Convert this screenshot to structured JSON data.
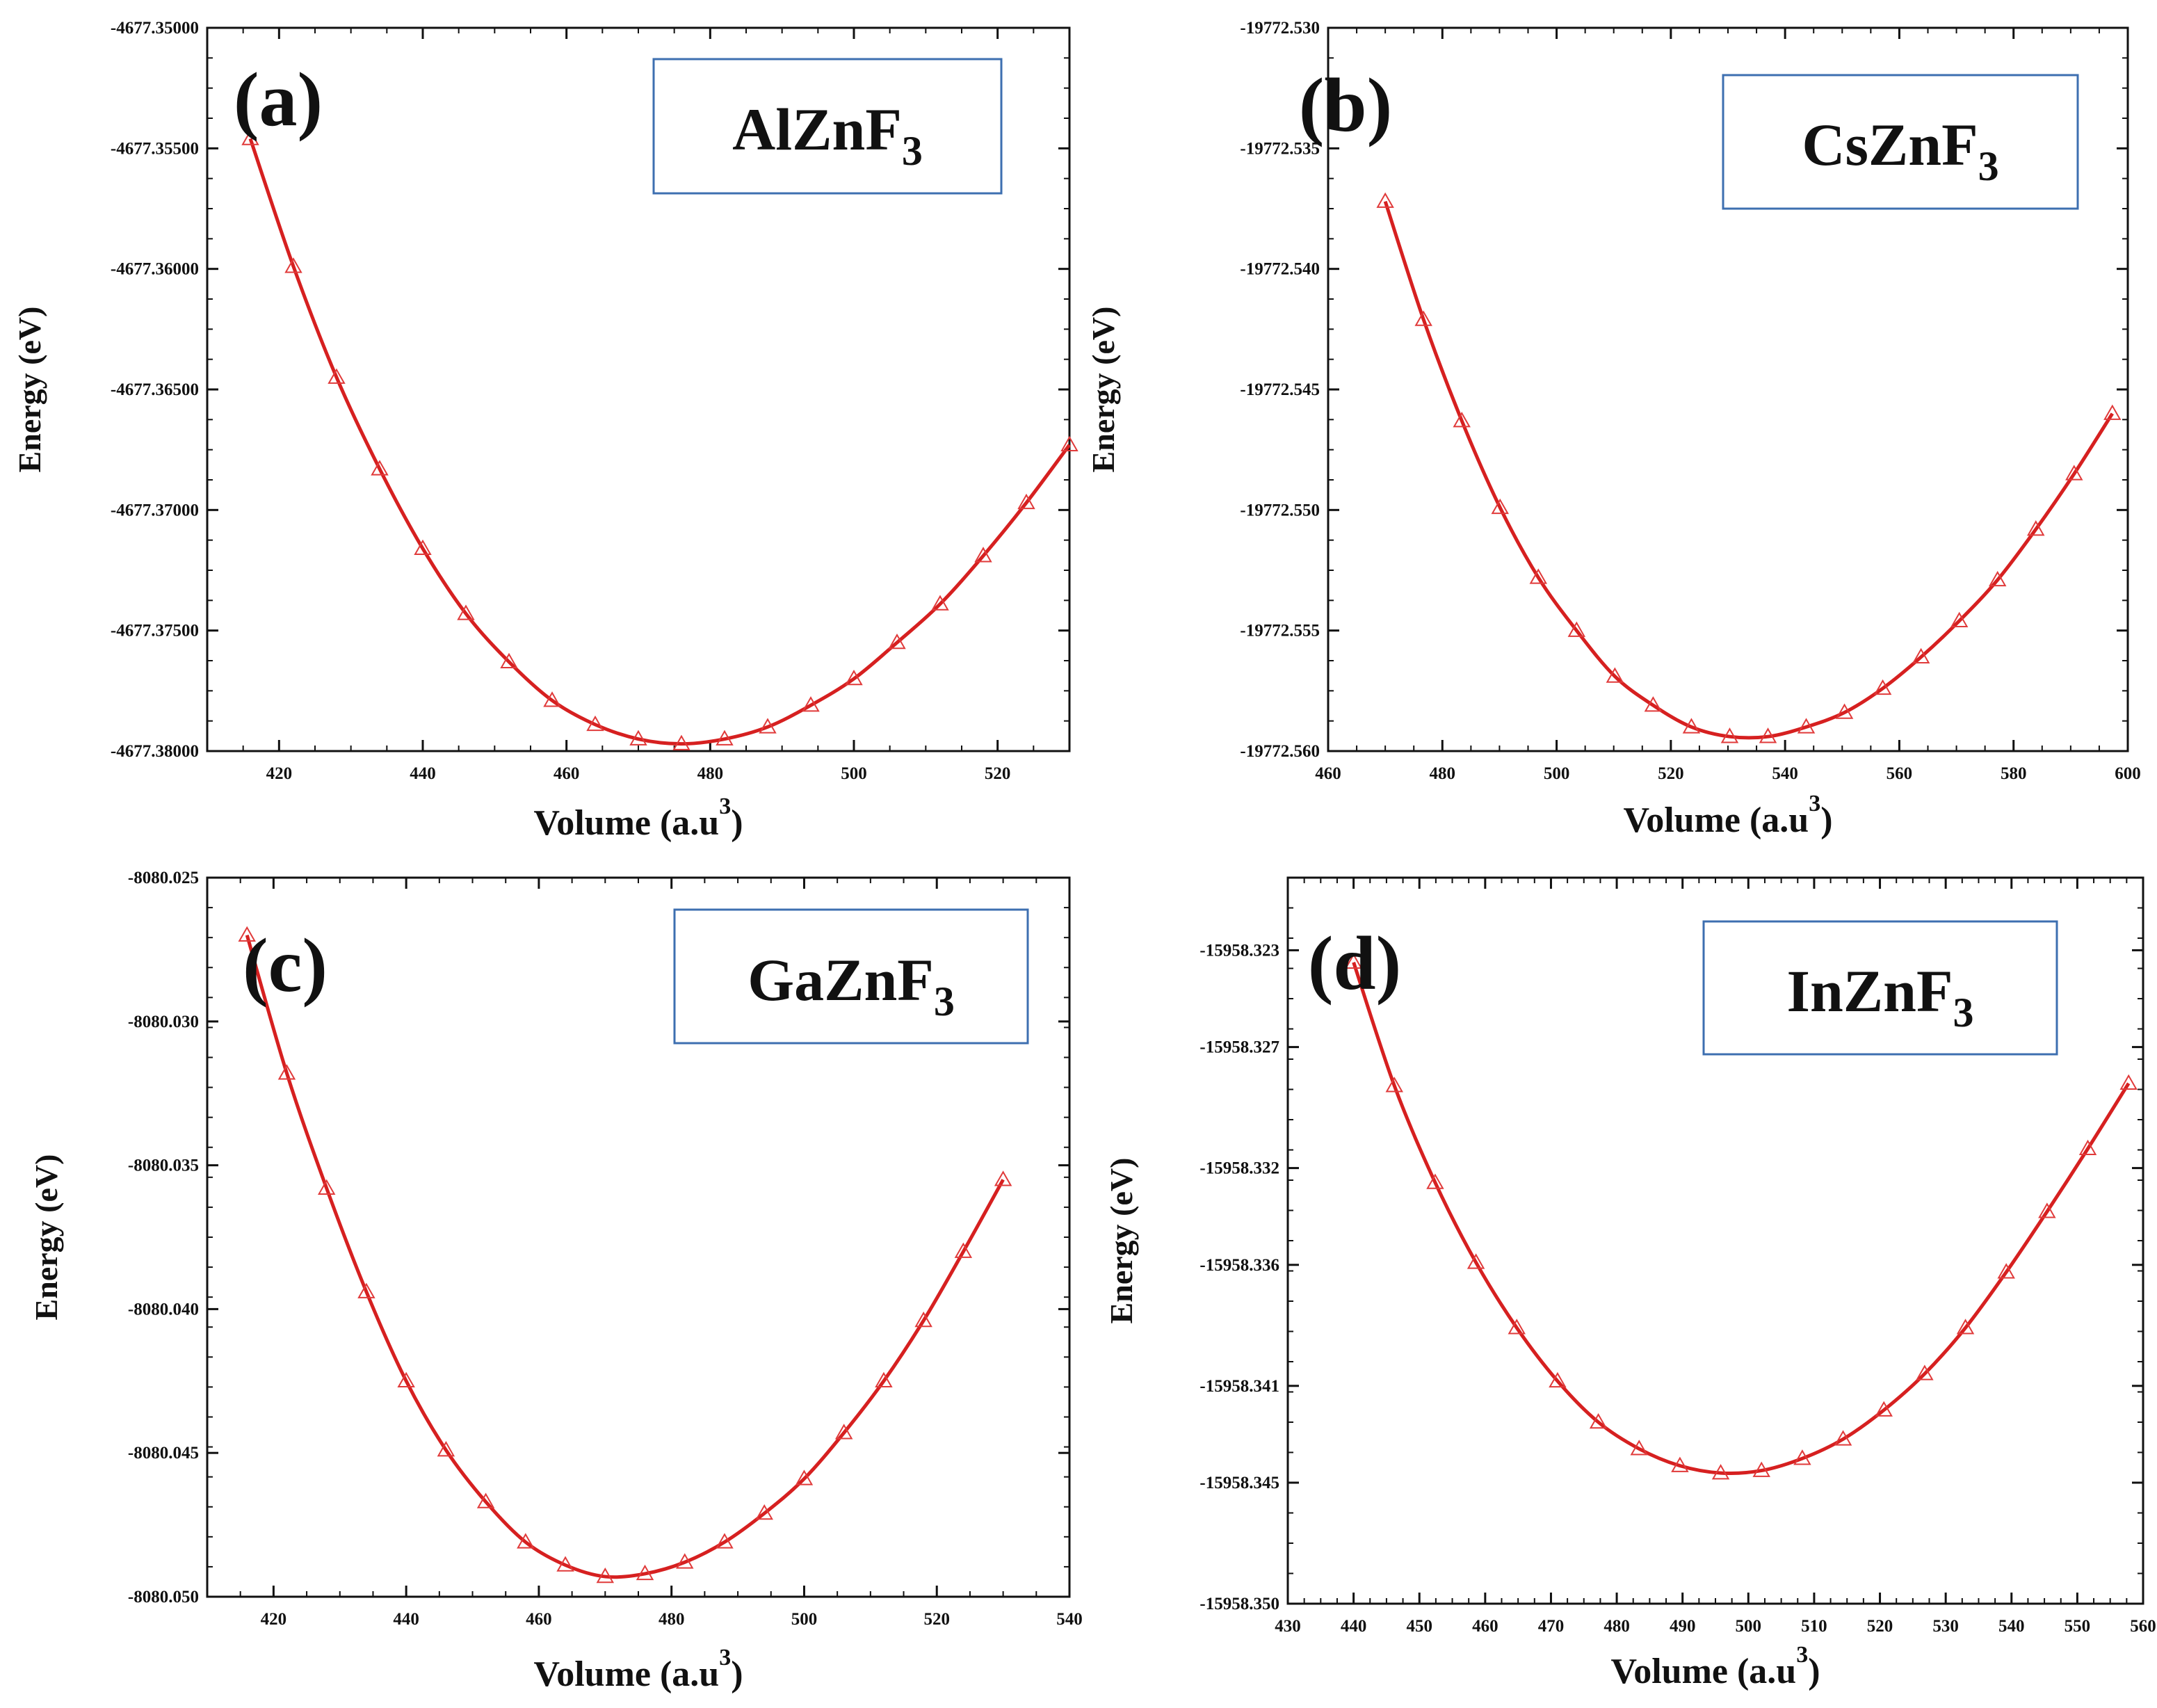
{
  "figure": {
    "accent_color": "#d62020",
    "marker_color": "#e03a3a",
    "label_box_color": "#3d6fb0"
  },
  "chart_data": [
    {
      "type": "line",
      "panel_label": "(a)",
      "compound": "AlZnF",
      "compound_subscript": "3",
      "xlabel": "Volume (a.u",
      "xlabel_sup": "3",
      "xlabel_close": ")",
      "ylabel": "Energy (eV)",
      "xlim": [
        410,
        530
      ],
      "ylim": [
        -4677.38,
        -4677.35
      ],
      "xticks": [
        420,
        440,
        460,
        480,
        500,
        520
      ],
      "xtick_labels": [
        "420",
        "440",
        "460",
        "480",
        "500",
        "520"
      ],
      "yticks": [
        -4677.35,
        -4677.355,
        -4677.36,
        -4677.365,
        -4677.37,
        -4677.375,
        -4677.38
      ],
      "ytick_labels": [
        "-4677.35000",
        "-4677.35500",
        "-4677.36000",
        "-4677.36500",
        "-4677.37000",
        "-4677.37500",
        "-4677.38000"
      ],
      "series": [
        {
          "name": "AlZnF3",
          "marker": "triangle-open",
          "x": [
            416,
            422,
            428,
            434,
            440,
            446,
            452,
            458,
            464,
            470,
            476,
            482,
            488,
            494,
            500,
            506,
            512,
            518,
            524,
            530
          ],
          "y": [
            -4677.3546,
            -4677.3599,
            -4677.3645,
            -4677.3683,
            -4677.3716,
            -4677.3743,
            -4677.3763,
            -4677.3779,
            -4677.3789,
            -4677.3795,
            -4677.3797,
            -4677.3795,
            -4677.379,
            -4677.3781,
            -4677.377,
            -4677.3755,
            -4677.3739,
            -4677.3719,
            -4677.3697,
            -4677.3673
          ]
        }
      ]
    },
    {
      "type": "line",
      "panel_label": "(b)",
      "compound": "CsZnF",
      "compound_subscript": "3",
      "xlabel": "Volume (a.u",
      "xlabel_sup": "3",
      "xlabel_close": ")",
      "ylabel": "Energy (eV)",
      "xlim": [
        460,
        600
      ],
      "ylim": [
        -19772.56,
        -19772.53
      ],
      "xticks": [
        460,
        480,
        500,
        520,
        540,
        560,
        580,
        600
      ],
      "xtick_labels": [
        "460",
        "480",
        "500",
        "520",
        "540",
        "560",
        "580",
        "600"
      ],
      "yticks": [
        -19772.53,
        -19772.535,
        -19772.54,
        -19772.545,
        -19772.55,
        -19772.555,
        -19772.56
      ],
      "ytick_labels": [
        "-19772.530",
        "-19772.535",
        "-19772.540",
        "-19772.545",
        "-19772.550",
        "-19772.555",
        "-19772.560"
      ],
      "series": [
        {
          "name": "CsZnF3",
          "marker": "triangle-open",
          "x": [
            470,
            476.7,
            483.4,
            490.1,
            496.8,
            503.5,
            510.2,
            516.9,
            523.6,
            530.3,
            537,
            543.7,
            550.4,
            557.1,
            563.8,
            570.5,
            577.2,
            583.9,
            590.6,
            597.3
          ],
          "y": [
            -19772.5372,
            -19772.5421,
            -19772.5463,
            -19772.5499,
            -19772.5528,
            -19772.555,
            -19772.5569,
            -19772.5581,
            -19772.559,
            -19772.5594,
            -19772.5594,
            -19772.559,
            -19772.5584,
            -19772.5574,
            -19772.5561,
            -19772.5546,
            -19772.5529,
            -19772.5508,
            -19772.5485,
            -19772.546
          ]
        }
      ]
    },
    {
      "type": "line",
      "panel_label": "(c)",
      "compound": "GaZnF",
      "compound_subscript": "3",
      "xlabel": "Volume (a.u",
      "xlabel_sup": "3",
      "xlabel_close": ")",
      "ylabel": "Energy (eV)",
      "xlim": [
        410,
        540
      ],
      "ylim": [
        -8080.05,
        -8080.025
      ],
      "xticks": [
        420,
        440,
        460,
        480,
        500,
        520,
        540
      ],
      "xtick_labels": [
        "420",
        "440",
        "460",
        "480",
        "500",
        "520",
        "540"
      ],
      "yticks": [
        -8080.025,
        -8080.03,
        -8080.035,
        -8080.04,
        -8080.045,
        -8080.05
      ],
      "ytick_labels": [
        "-8080.025",
        "-8080.030",
        "-8080.035",
        "-8080.040",
        "-8080.045",
        "-8080.050"
      ],
      "series": [
        {
          "name": "GaZnF3",
          "marker": "triangle-open",
          "x": [
            416,
            422,
            428,
            434,
            440,
            446,
            452,
            458,
            464,
            470,
            476,
            482,
            488,
            494,
            500,
            506,
            512,
            518,
            524,
            530
          ],
          "y": [
            -8080.027,
            -8080.0318,
            -8080.0358,
            -8080.0394,
            -8080.0425,
            -8080.0449,
            -8080.0467,
            -8080.0481,
            -8080.0489,
            -8080.0493,
            -8080.0492,
            -8080.0488,
            -8080.0481,
            -8080.0471,
            -8080.0459,
            -8080.0443,
            -8080.0425,
            -8080.0404,
            -8080.038,
            -8080.0355
          ]
        }
      ]
    },
    {
      "type": "line",
      "panel_label": "(d)",
      "compound": "InZnF",
      "compound_subscript": "3",
      "xlabel": "Volume (a.u",
      "xlabel_sup": "3",
      "xlabel_close": ")",
      "ylabel": "Energy (eV)",
      "xlim": [
        430,
        560
      ],
      "ylim": [
        -15958.35,
        -15958.32
      ],
      "xticks": [
        430,
        440,
        450,
        460,
        470,
        480,
        490,
        500,
        510,
        520,
        530,
        540,
        550,
        560
      ],
      "xtick_labels": [
        "430",
        "440",
        "450",
        "460",
        "470",
        "480",
        "490",
        "500",
        "510",
        "520",
        "530",
        "540",
        "550",
        "560"
      ],
      "yticks": [
        -15958.323,
        -15958.327,
        -15958.332,
        -15958.336,
        -15958.341,
        -15958.345,
        -15958.35
      ],
      "ytick_labels": [
        "-15958.323",
        "-15958.327",
        "-15958.332",
        "-15958.336",
        "-15958.341",
        "-15958.345",
        "-15958.350"
      ],
      "series": [
        {
          "name": "InZnF3",
          "marker": "triangle-open",
          "x": [
            440,
            446.2,
            452.4,
            458.6,
            464.8,
            471,
            477.2,
            483.4,
            489.6,
            495.8,
            502,
            508.2,
            514.4,
            520.6,
            526.8,
            533,
            539.2,
            545.4,
            551.6,
            557.8
          ],
          "y": [
            -15958.3235,
            -15958.3286,
            -15958.3326,
            -15958.3359,
            -15958.3386,
            -15958.3408,
            -15958.3425,
            -15958.3436,
            -15958.3443,
            -15958.3446,
            -15958.3445,
            -15958.344,
            -15958.3432,
            -15958.342,
            -15958.3405,
            -15958.3386,
            -15958.3363,
            -15958.3338,
            -15958.3312,
            -15958.3285
          ]
        }
      ]
    }
  ]
}
